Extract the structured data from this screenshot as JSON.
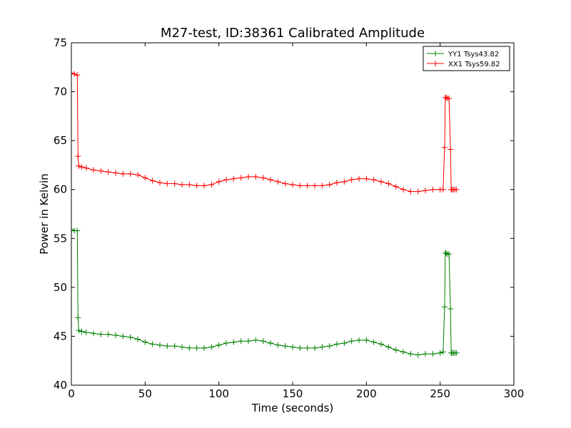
{
  "chart_data": {
    "type": "line",
    "title": "M27-test, ID:38361 Calibrated Amplitude",
    "xlabel": "Time (seconds)",
    "ylabel": "Power in Kelvin",
    "xlim": [
      0,
      300
    ],
    "ylim": [
      40,
      75
    ],
    "x_ticks": [
      "0",
      "50",
      "100",
      "150",
      "200",
      "250",
      "300"
    ],
    "y_ticks": [
      "40",
      "45",
      "50",
      "55",
      "60",
      "65",
      "70",
      "75"
    ],
    "grid": false,
    "legend_position": "top-right",
    "series": [
      {
        "name": "YY1 Tsys43.82",
        "color": "#008000",
        "marker": "+",
        "x": [
          0,
          2,
          4,
          4.5,
          5,
          7,
          10,
          15,
          20,
          25,
          30,
          35,
          40,
          45,
          50,
          55,
          60,
          65,
          70,
          75,
          80,
          85,
          90,
          95,
          100,
          105,
          110,
          115,
          120,
          125,
          130,
          135,
          140,
          145,
          150,
          155,
          160,
          165,
          170,
          175,
          180,
          185,
          190,
          195,
          200,
          205,
          210,
          215,
          220,
          225,
          230,
          235,
          240,
          245,
          250,
          252,
          253,
          253.5,
          254,
          255,
          256,
          257,
          257.5,
          258,
          259,
          260,
          261
        ],
        "y": [
          55.9,
          55.8,
          55.8,
          46.9,
          45.6,
          45.5,
          45.4,
          45.3,
          45.2,
          45.2,
          45.1,
          45.0,
          44.9,
          44.7,
          44.4,
          44.2,
          44.1,
          44.0,
          44.0,
          43.9,
          43.8,
          43.8,
          43.8,
          43.9,
          44.1,
          44.3,
          44.4,
          44.5,
          44.5,
          44.6,
          44.5,
          44.3,
          44.1,
          44.0,
          43.9,
          43.8,
          43.8,
          43.8,
          43.9,
          44.0,
          44.2,
          44.3,
          44.5,
          44.6,
          44.6,
          44.4,
          44.2,
          43.9,
          43.6,
          43.4,
          43.2,
          43.1,
          43.2,
          43.2,
          43.3,
          43.4,
          48.0,
          53.5,
          53.5,
          53.4,
          53.4,
          47.8,
          43.3,
          43.3,
          43.3,
          43.3,
          43.3
        ]
      },
      {
        "name": "XX1 Tsys59.82",
        "color": "#ff0000",
        "marker": "+",
        "x": [
          0,
          2,
          4,
          4.5,
          5,
          7,
          10,
          15,
          20,
          25,
          30,
          35,
          40,
          45,
          50,
          55,
          60,
          65,
          70,
          75,
          80,
          85,
          90,
          95,
          100,
          105,
          110,
          115,
          120,
          125,
          130,
          135,
          140,
          145,
          150,
          155,
          160,
          165,
          170,
          175,
          180,
          185,
          190,
          195,
          200,
          205,
          210,
          215,
          220,
          225,
          230,
          235,
          240,
          245,
          250,
          252,
          253,
          253.5,
          254,
          255,
          256,
          257,
          257.5,
          258,
          259,
          260,
          261
        ],
        "y": [
          71.9,
          71.8,
          71.7,
          63.4,
          62.4,
          62.3,
          62.2,
          62.0,
          61.9,
          61.8,
          61.7,
          61.6,
          61.6,
          61.5,
          61.2,
          60.9,
          60.7,
          60.6,
          60.6,
          60.5,
          60.5,
          60.4,
          60.4,
          60.5,
          60.8,
          61.0,
          61.1,
          61.2,
          61.3,
          61.3,
          61.2,
          61.0,
          60.8,
          60.6,
          60.5,
          60.4,
          60.4,
          60.4,
          60.4,
          60.5,
          60.7,
          60.8,
          61.0,
          61.1,
          61.1,
          61.0,
          60.8,
          60.6,
          60.3,
          60.0,
          59.8,
          59.8,
          59.9,
          60.0,
          60.0,
          60.0,
          64.3,
          69.4,
          69.4,
          69.3,
          69.3,
          64.1,
          60.0,
          60.0,
          60.0,
          60.0,
          60.0
        ]
      }
    ]
  }
}
